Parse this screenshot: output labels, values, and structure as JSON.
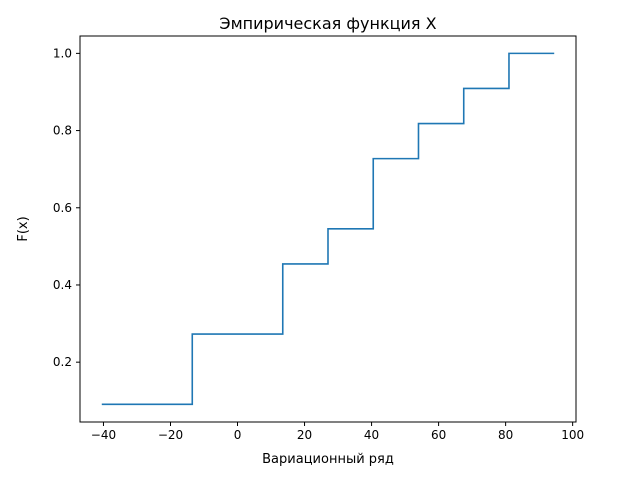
{
  "chart_data": {
    "type": "line",
    "drawstyle": "steps-post",
    "title": "Эмпирическая функция X",
    "xlabel": "Вариационный ряд",
    "ylabel": "F(x)",
    "xlim": [
      -47,
      101
    ],
    "ylim": [
      0.045,
      1.045
    ],
    "xticks": [
      -40,
      -20,
      0,
      20,
      40,
      60,
      80,
      100
    ],
    "xtick_labels": [
      "−40",
      "−20",
      "0",
      "20",
      "40",
      "60",
      "80",
      "100"
    ],
    "yticks": [
      0.2,
      0.4,
      0.6,
      0.8,
      1.0
    ],
    "ytick_labels": [
      "0.2",
      "0.4",
      "0.6",
      "0.8",
      "1.0"
    ],
    "grid": false,
    "line_color": "#1f77b4",
    "series": [
      {
        "x": [
          -40.5,
          -13.5,
          13.5,
          27,
          40.5,
          54,
          67.5,
          81,
          94.5
        ],
        "y": [
          0.0909,
          0.2727,
          0.4545,
          0.5455,
          0.7273,
          0.8182,
          0.9091,
          1.0,
          1.0
        ]
      }
    ]
  }
}
